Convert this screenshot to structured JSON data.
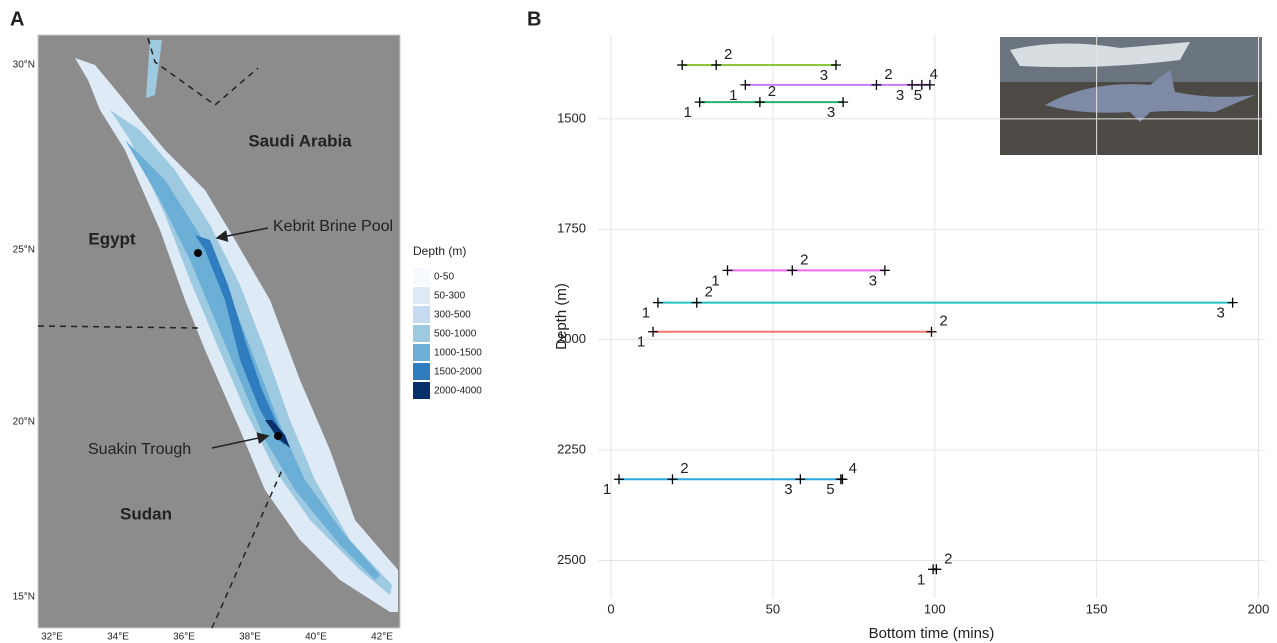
{
  "panel_labels": [
    "A",
    "B"
  ],
  "map": {
    "countries": [
      "Saudi Arabia",
      "Egypt",
      "Sudan"
    ],
    "annotations": [
      "Kebrit Brine Pool",
      "Suakin Trough"
    ],
    "lat_ticks": [
      "30°N",
      "25°N",
      "20°N",
      "15°N"
    ],
    "lon_ticks": [
      "32°E",
      "34°E",
      "36°E",
      "38°E",
      "40°E",
      "42°E"
    ],
    "legend": {
      "title": "Depth (m)",
      "items": [
        {
          "label": "0-50",
          "color": "#f7fbff"
        },
        {
          "label": "50-300",
          "color": "#deebf7"
        },
        {
          "label": "300-500",
          "color": "#c6dbef"
        },
        {
          "label": "500-1000",
          "color": "#9ecae1"
        },
        {
          "label": "1000-1500",
          "color": "#6baed6"
        },
        {
          "label": "1500-2000",
          "color": "#2f7cbf"
        },
        {
          "label": "2000-4000",
          "color": "#08306b"
        }
      ]
    }
  },
  "chart_data": {
    "type": "line",
    "xlabel": "Bottom time (mins)",
    "ylabel": "Depth (m)",
    "xlim": [
      -4,
      202
    ],
    "xticks": [
      0,
      50,
      100,
      150,
      200
    ],
    "ylim": [
      2585,
      1310
    ],
    "yticks": [
      1500,
      1750,
      2000,
      2250,
      2500
    ],
    "grid": true,
    "series": [
      {
        "color": "#8cc63f",
        "x": [
          22,
          32.5,
          69.5
        ],
        "values": [
          1378,
          1378,
          1378
        ],
        "labels": [
          null,
          "2",
          "3"
        ]
      },
      {
        "color": "#c77cff",
        "x": [
          41.5,
          82,
          93,
          96,
          98.5
        ],
        "values": [
          1423,
          1423,
          1423,
          1423,
          1423
        ],
        "labels": [
          "1",
          "2",
          "3",
          "4",
          "5"
        ]
      },
      {
        "color": "#22b26b",
        "x": [
          27.4,
          46,
          71.7
        ],
        "values": [
          1462,
          1462,
          1462
        ],
        "labels": [
          "1",
          "2",
          "3"
        ]
      },
      {
        "color": "#e76bf3",
        "x": [
          36,
          56,
          84.6
        ],
        "values": [
          1843,
          1843,
          1843
        ],
        "labels": [
          "1",
          "2",
          "3"
        ]
      },
      {
        "color": "#22bfc4",
        "x": [
          14.5,
          26.5,
          192
        ],
        "values": [
          1916,
          1916,
          1916
        ],
        "labels": [
          "1",
          "2",
          "3"
        ]
      },
      {
        "color": "#f8766d",
        "x": [
          13,
          99
        ],
        "values": [
          1982,
          1982
        ],
        "labels": [
          "1",
          "2"
        ]
      },
      {
        "color": "#2aa8e0",
        "x": [
          2.5,
          19,
          58.5,
          71,
          71.5
        ],
        "values": [
          2316,
          2316,
          2316,
          2316,
          2316
        ],
        "labels": [
          "1",
          "2",
          "3",
          "4",
          "5"
        ]
      },
      {
        "color": "#000000",
        "x": [
          99.5,
          100.5
        ],
        "values": [
          2520,
          2520
        ],
        "labels": [
          "1",
          "2"
        ]
      }
    ]
  }
}
